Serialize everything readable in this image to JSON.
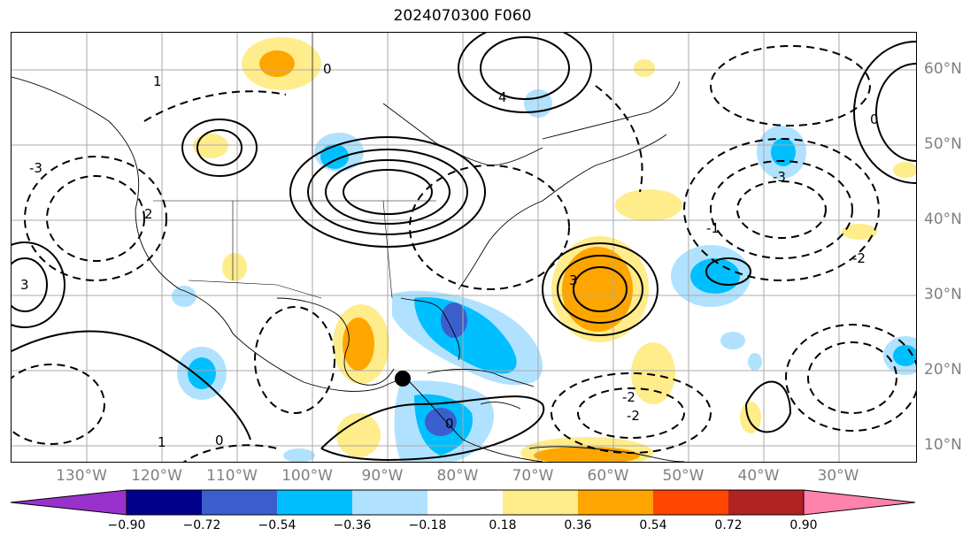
{
  "title": "2024070300 F060",
  "map": {
    "projection": "plate-carree",
    "lon_range_deg": [
      -140,
      -20
    ],
    "lat_range_deg": [
      8,
      65
    ],
    "gridlines": true,
    "coastlines": true,
    "country_borders": true,
    "state_borders": true,
    "contour_style": "solid positive, dashed negative",
    "marker": "black-dot"
  },
  "lon_labels": [
    "130°W",
    "120°W",
    "110°W",
    "100°W",
    "90°W",
    "80°W",
    "70°W",
    "60°W",
    "50°W",
    "40°W",
    "30°W"
  ],
  "lat_labels": [
    "60°N",
    "50°N",
    "40°N",
    "30°N",
    "20°N",
    "10°N"
  ],
  "contour_labels": [
    "0",
    "1",
    "2",
    "3",
    "4",
    "-1",
    "-2",
    "-3"
  ],
  "colorbar": {
    "levels": [
      "−0.90",
      "−0.72",
      "−0.54",
      "−0.36",
      "−0.18",
      "0.18",
      "0.36",
      "0.54",
      "0.72",
      "0.90"
    ],
    "colors": [
      "#9932cc",
      "#00008b",
      "#3a5fcd",
      "#00bfff",
      "#b0e2ff",
      "#ffffff",
      "#ffec8b",
      "#ffa500",
      "#ff4500",
      "#b22222",
      "#ff82ab"
    ],
    "extend": "both"
  }
}
